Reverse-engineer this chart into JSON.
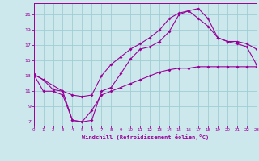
{
  "bg_color": "#cce8ec",
  "grid_color": "#9ecdd4",
  "line_color": "#990099",
  "marker": "D",
  "marker_size": 2.0,
  "xlim": [
    0,
    23
  ],
  "ylim": [
    6.5,
    22.5
  ],
  "yticks": [
    7,
    9,
    11,
    13,
    15,
    17,
    19,
    21
  ],
  "xticks": [
    0,
    1,
    2,
    3,
    4,
    5,
    6,
    7,
    8,
    9,
    10,
    11,
    12,
    13,
    14,
    15,
    16,
    17,
    18,
    19,
    20,
    21,
    22,
    23
  ],
  "xlabel": "Windchill (Refroidissement éolien,°C)",
  "line1_x": [
    0,
    1,
    3,
    4,
    5,
    6,
    7,
    8,
    9,
    10,
    11,
    12,
    13,
    14,
    15,
    16,
    17,
    18,
    19,
    20,
    21,
    22,
    23
  ],
  "line1_y": [
    13.2,
    12.5,
    11.0,
    7.2,
    7.0,
    7.2,
    11.0,
    11.5,
    13.3,
    15.2,
    16.5,
    16.8,
    17.5,
    18.8,
    21.0,
    21.5,
    21.8,
    20.5,
    18.0,
    17.5,
    17.2,
    16.8,
    14.5
  ],
  "line2_x": [
    0,
    1,
    2,
    3,
    4,
    5,
    6,
    7,
    8,
    9,
    10,
    11,
    12,
    13,
    14,
    15,
    16,
    17,
    18,
    19,
    20,
    21,
    22,
    23
  ],
  "line2_y": [
    13.2,
    12.5,
    11.2,
    11.0,
    10.5,
    10.3,
    10.5,
    13.0,
    14.5,
    15.5,
    16.5,
    17.2,
    18.0,
    19.0,
    20.5,
    21.2,
    21.5,
    20.5,
    19.5,
    18.0,
    17.5,
    17.5,
    17.2,
    16.5
  ],
  "line3_x": [
    0,
    1,
    2,
    3,
    4,
    5,
    6,
    7,
    8,
    9,
    10,
    11,
    12,
    13,
    14,
    15,
    16,
    17,
    18,
    19,
    20,
    21,
    22,
    23
  ],
  "line3_y": [
    13.2,
    11.0,
    11.0,
    10.5,
    7.2,
    7.0,
    8.5,
    10.5,
    11.0,
    11.5,
    12.0,
    12.5,
    13.0,
    13.5,
    13.8,
    14.0,
    14.0,
    14.2,
    14.2,
    14.2,
    14.2,
    14.2,
    14.2,
    14.2
  ]
}
